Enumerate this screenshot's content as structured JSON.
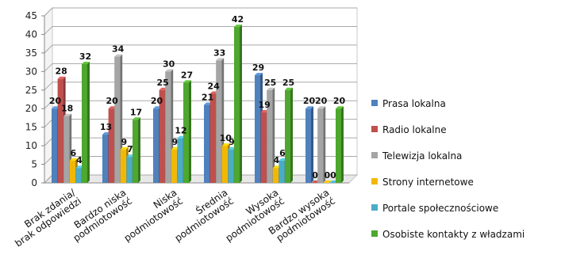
{
  "chart_data": {
    "type": "bar",
    "categories": [
      [
        "Brak zdania/",
        "brak odpowiedzi"
      ],
      [
        "Bardzo niska",
        "podmiotowość"
      ],
      [
        "Niska",
        "podmiotowość"
      ],
      [
        "Średnia",
        "podmiotowość"
      ],
      [
        "Wysoka",
        "podmiotowość"
      ],
      [
        "Bardzo wysoka",
        "podmiotowość"
      ]
    ],
    "series": [
      {
        "name": "Prasa lokalna",
        "color": "#4F81BD",
        "values": [
          20,
          13,
          20,
          21,
          29,
          20
        ]
      },
      {
        "name": "Radio lokalne",
        "color": "#C0504D",
        "values": [
          28,
          20,
          25,
          24,
          19,
          0
        ]
      },
      {
        "name": "Telewizja lokalna",
        "color": "#A5A5A5",
        "values": [
          18,
          34,
          30,
          33,
          25,
          20
        ]
      },
      {
        "name": "Strony internetowe",
        "color": "#F2B800",
        "values": [
          6,
          9,
          9,
          10,
          4,
          0
        ]
      },
      {
        "name": "Portale społecznościowe",
        "color": "#4BACC6",
        "values": [
          4,
          7,
          12,
          9,
          6,
          0
        ]
      },
      {
        "name": "Osobiste kontakty z władzami",
        "color": "#4EA72E",
        "values": [
          32,
          17,
          27,
          42,
          25,
          20
        ]
      }
    ],
    "ylim": [
      0,
      45
    ],
    "yticks": [
      0,
      5,
      10,
      15,
      20,
      25,
      30,
      35,
      40,
      45
    ],
    "grid": true,
    "legend_position": "right"
  }
}
